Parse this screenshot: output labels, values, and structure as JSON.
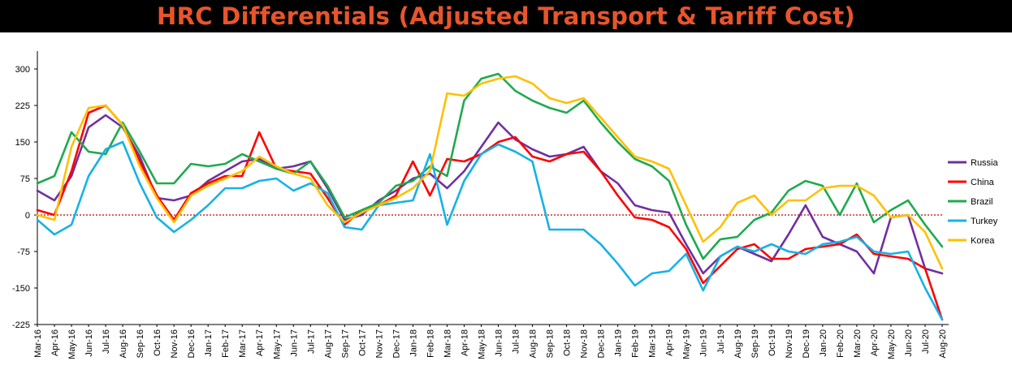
{
  "chart_data": {
    "type": "line",
    "title": "HRC Differentials (Adjusted Transport & Tariff Cost)",
    "xlabel": "",
    "ylabel": "",
    "ylim": [
      -225,
      300
    ],
    "yticks": [
      -225,
      -150,
      -75,
      0,
      75,
      150,
      225,
      300
    ],
    "grid": false,
    "zero_line": {
      "style": "dashed",
      "color": "#c00000"
    },
    "legend_position": "right",
    "categories": [
      "Mar-16",
      "Apr-16",
      "May-16",
      "Jun-16",
      "Jul-16",
      "Aug-16",
      "Sep-16",
      "Oct-16",
      "Nov-16",
      "Dec-16",
      "Jan-17",
      "Feb-17",
      "Mar-17",
      "Apr-17",
      "May-17",
      "Jun-17",
      "Jul-17",
      "Aug-17",
      "Sep-17",
      "Oct-17",
      "Nov-17",
      "Dec-17",
      "Jan-18",
      "Feb-18",
      "Mar-18",
      "Apr-18",
      "May-18",
      "Jun-18",
      "Jul-18",
      "Aug-18",
      "Sep-18",
      "Oct-18",
      "Nov-18",
      "Dec-18",
      "Jan-19",
      "Feb-19",
      "Mar-19",
      "Apr-19",
      "May-19",
      "Jun-19",
      "Jul-19",
      "Aug-19",
      "Sep-19",
      "Oct-19",
      "Nov-19",
      "Dec-19",
      "Jan-20",
      "Feb-20",
      "Mar-20",
      "Apr-20",
      "May-20",
      "Jun-20",
      "Jul-20",
      "Aug-20"
    ],
    "series": [
      {
        "name": "Russia",
        "color": "#7030a0",
        "values": [
          50,
          30,
          80,
          180,
          205,
          180,
          120,
          35,
          30,
          40,
          70,
          90,
          110,
          115,
          95,
          100,
          110,
          55,
          -10,
          0,
          30,
          50,
          75,
          85,
          55,
          90,
          140,
          190,
          155,
          135,
          120,
          125,
          140,
          90,
          65,
          20,
          10,
          5,
          -60,
          -120,
          -85,
          -65,
          -80,
          -95,
          -40,
          20,
          -45,
          -60,
          -75,
          -120,
          -5,
          0,
          -110,
          -120
        ]
      },
      {
        "name": "China",
        "color": "#ff0000",
        "values": [
          10,
          0,
          90,
          210,
          225,
          185,
          110,
          40,
          -10,
          45,
          65,
          80,
          80,
          170,
          95,
          90,
          85,
          35,
          -20,
          10,
          20,
          40,
          110,
          40,
          115,
          110,
          125,
          150,
          160,
          120,
          110,
          125,
          130,
          90,
          40,
          -5,
          -10,
          -25,
          -70,
          -140,
          -105,
          -70,
          -60,
          -90,
          -90,
          -70,
          -65,
          -60,
          -40,
          -80,
          -85,
          -90,
          -110,
          -215
        ]
      },
      {
        "name": "Brazil",
        "color": "#1faa4e",
        "values": [
          65,
          80,
          170,
          130,
          125,
          190,
          130,
          65,
          65,
          105,
          100,
          105,
          125,
          110,
          95,
          85,
          110,
          60,
          -5,
          10,
          25,
          60,
          70,
          100,
          80,
          235,
          280,
          290,
          255,
          235,
          220,
          210,
          235,
          190,
          150,
          115,
          100,
          70,
          -20,
          -90,
          -50,
          -45,
          -10,
          5,
          50,
          70,
          60,
          0,
          65,
          -15,
          10,
          30,
          -20,
          -65
        ]
      },
      {
        "name": "Turkey",
        "color": "#17b1e6",
        "values": [
          -10,
          -40,
          -20,
          80,
          135,
          150,
          65,
          -5,
          -35,
          -10,
          20,
          55,
          55,
          70,
          75,
          50,
          65,
          45,
          -25,
          -30,
          20,
          25,
          30,
          125,
          -20,
          70,
          125,
          145,
          130,
          110,
          -30,
          -30,
          -30,
          -60,
          -100,
          -145,
          -120,
          -115,
          -80,
          -155,
          -85,
          -65,
          -75,
          -60,
          -75,
          -80,
          -60,
          -55,
          -45,
          -75,
          -80,
          -75,
          -150,
          -215
        ]
      },
      {
        "name": "Korea",
        "color": "#ffc000",
        "values": [
          0,
          -10,
          140,
          220,
          225,
          185,
          100,
          35,
          -15,
          40,
          60,
          75,
          90,
          120,
          100,
          85,
          75,
          20,
          -15,
          5,
          20,
          35,
          55,
          90,
          250,
          245,
          270,
          280,
          285,
          270,
          240,
          230,
          240,
          200,
          160,
          120,
          110,
          95,
          20,
          -55,
          -25,
          25,
          40,
          0,
          30,
          30,
          55,
          60,
          60,
          40,
          -5,
          0,
          -35,
          -110
        ]
      }
    ]
  }
}
